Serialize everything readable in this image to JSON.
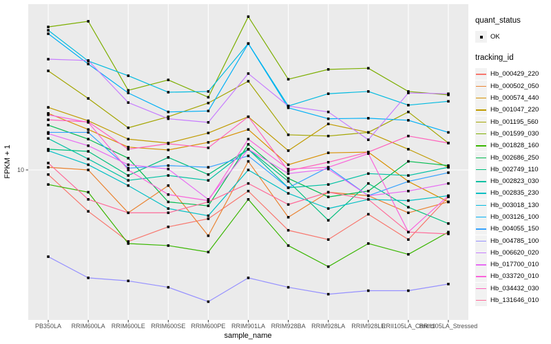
{
  "chart_data": {
    "type": "line",
    "title": "",
    "xlabel": "sample_name",
    "ylabel": "FPKM + 1",
    "x_categories": [
      "PB350LA",
      "RRIM600LA",
      "RRIM600LE",
      "RRIM600SE",
      "RRIM600PE",
      "RRIM901LA",
      "RRIM928BA",
      "RRIM928LA",
      "RRIM928LE",
      "RRII105LA_Control",
      "RRII105LA_Stressed"
    ],
    "y_scale": "log10",
    "y_ticks": [
      10
    ],
    "y_tick_labels": [
      "10"
    ],
    "ylim": [
      1.9,
      63
    ],
    "grid": "white major gridlines on gray panel",
    "legend_position": "right",
    "point_marker": "small black square (quant_status OK)",
    "series": [
      {
        "name": "Hb_000429_220",
        "color": "#F8766D",
        "values": [
          9.5,
          6.3,
          4.5,
          5.3,
          5.8,
          7.9,
          5.1,
          4.6,
          6.1,
          4.6,
          7.4
        ]
      },
      {
        "name": "Hb_000502_050",
        "color": "#EA8331",
        "values": [
          10.3,
          10.0,
          6.2,
          8.4,
          4.8,
          11.0,
          5.9,
          7.8,
          7.5,
          6.2,
          7.0
        ]
      },
      {
        "name": "Hb_000574_440",
        "color": "#D89000",
        "values": [
          18.8,
          15.7,
          12.9,
          12.5,
          13.6,
          15.7,
          10.6,
          12.1,
          12.2,
          8.8,
          7.0
        ]
      },
      {
        "name": "Hb_001047_220",
        "color": "#C09B00",
        "values": [
          20.1,
          17.3,
          14.1,
          13.5,
          15.1,
          18.1,
          12.4,
          16.7,
          15.2,
          12.6,
          10.3
        ]
      },
      {
        "name": "Hb_001195_560",
        "color": "#A3A500",
        "values": [
          30.2,
          22.2,
          16.0,
          18.1,
          21.1,
          26.9,
          14.8,
          14.6,
          15.2,
          19.1,
          13.5
        ]
      },
      {
        "name": "Hb_001599_030",
        "color": "#7CAE00",
        "values": [
          49.3,
          52.5,
          24.3,
          27.3,
          22.5,
          55.3,
          27.5,
          30.7,
          31.1,
          24.0,
          23.1
        ]
      },
      {
        "name": "Hb_001828_160",
        "color": "#39B600",
        "values": [
          8.5,
          7.8,
          4.4,
          4.3,
          4.0,
          7.2,
          4.3,
          3.4,
          4.4,
          3.9,
          5.0
        ]
      },
      {
        "name": "Hb_002686_250",
        "color": "#00BB4E",
        "values": [
          16.5,
          14.1,
          11.4,
          7.0,
          6.7,
          13.3,
          9.1,
          7.4,
          7.9,
          11.0,
          10.5
        ]
      },
      {
        "name": "Hb_002749_110",
        "color": "#00BF7D",
        "values": [
          12.6,
          12.3,
          9.4,
          11.5,
          9.5,
          12.6,
          8.8,
          5.7,
          8.6,
          6.6,
          5.5
        ]
      },
      {
        "name": "Hb_002823_030",
        "color": "#00C1A3",
        "values": [
          14.2,
          11.3,
          8.9,
          9.4,
          8.9,
          12.6,
          8.2,
          8.5,
          9.6,
          9.4,
          10.3
        ]
      },
      {
        "name": "Hb_002835_230",
        "color": "#00BFC4",
        "values": [
          12.4,
          10.6,
          8.4,
          6.5,
          6.0,
          10.0,
          7.7,
          6.5,
          7.2,
          7.1,
          7.5
        ]
      },
      {
        "name": "Hb_003018_130",
        "color": "#00BAE0",
        "values": [
          47.5,
          33.7,
          28.6,
          23.8,
          24.0,
          41.0,
          20.4,
          23.4,
          24.0,
          20.6,
          21.5
        ]
      },
      {
        "name": "Hb_003126_100",
        "color": "#00B0F6",
        "values": [
          45.7,
          32.6,
          23.6,
          19.1,
          19.3,
          40.9,
          20.0,
          17.7,
          17.8,
          17.4,
          15.2
        ]
      },
      {
        "name": "Hb_004055_150",
        "color": "#35A2FF",
        "values": [
          15.2,
          15.2,
          10.2,
          10.5,
          10.3,
          11.7,
          8.2,
          10.3,
          7.5,
          8.8,
          9.7
        ]
      },
      {
        "name": "Hb_004785_100",
        "color": "#9590FF",
        "values": [
          3.8,
          3.0,
          2.9,
          2.7,
          2.3,
          3.0,
          2.7,
          2.5,
          2.6,
          2.6,
          2.8
        ]
      },
      {
        "name": "Hb_006620_020",
        "color": "#C77CFF",
        "values": [
          34.4,
          33.9,
          21.2,
          17.7,
          17.0,
          29.3,
          20.4,
          19.1,
          14.0,
          23.6,
          23.4
        ]
      },
      {
        "name": "Hb_017700_010",
        "color": "#E76BF3",
        "values": [
          15.0,
          13.1,
          10.6,
          10.1,
          7.2,
          12.6,
          9.6,
          10.1,
          7.5,
          7.9,
          8.6
        ]
      },
      {
        "name": "Hb_033720_010",
        "color": "#FA62DB",
        "values": [
          18.5,
          17.0,
          10.0,
          7.6,
          7.1,
          14.1,
          10.1,
          10.3,
          12.0,
          5.0,
          7.5
        ]
      },
      {
        "name": "Hb_034432_030",
        "color": "#FF62BC",
        "values": [
          17.5,
          17.1,
          12.6,
          13.4,
          12.8,
          18.1,
          9.9,
          10.9,
          12.2,
          14.6,
          13.5
        ]
      },
      {
        "name": "Hb_131646_010",
        "color": "#FF6A98",
        "values": [
          10.8,
          7.2,
          6.2,
          6.2,
          7.0,
          8.6,
          6.8,
          7.8,
          7.2,
          5.0,
          4.9
        ]
      }
    ]
  },
  "legend": {
    "quant_status_title": "quant_status",
    "quant_status_items": [
      {
        "label": "OK"
      }
    ],
    "tracking_id_title": "tracking_id"
  },
  "colors": {
    "panel_bg": "#EBEBEB",
    "grid": "#FFFFFF",
    "tick_text": "#4D4D4D",
    "point": "#000000",
    "legend_key_bg": "#F2F2F2"
  }
}
